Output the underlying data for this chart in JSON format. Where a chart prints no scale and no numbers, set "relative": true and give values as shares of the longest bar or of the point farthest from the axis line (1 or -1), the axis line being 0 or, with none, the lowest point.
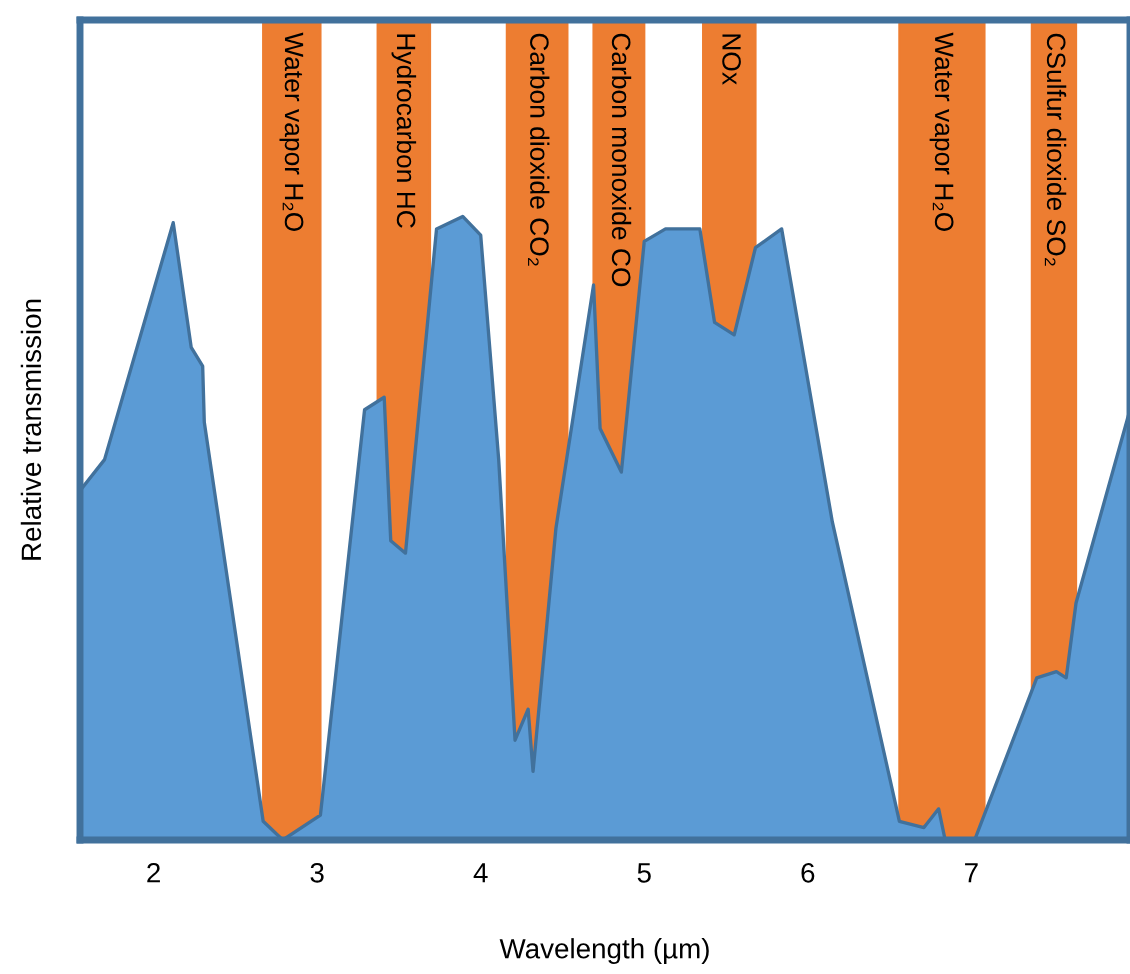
{
  "chart_data": {
    "type": "area",
    "relative": true,
    "xlabel": "Wavelength (µm)",
    "ylabel": "Relative transmission",
    "xlim": [
      1.55,
      7.97
    ],
    "xticks": [
      2,
      3,
      4,
      5,
      6,
      7
    ],
    "grid": false,
    "legend": false,
    "series": [
      {
        "color": "#5b9bd5",
        "x": [
          1.55,
          1.7,
          2.12,
          2.23,
          2.3,
          2.31,
          2.67,
          2.79,
          3.02,
          3.29,
          3.41,
          3.45,
          3.54,
          3.73,
          3.89,
          4.0,
          4.11,
          4.21,
          4.29,
          4.32,
          4.46,
          4.69,
          4.73,
          4.86,
          5.0,
          5.13,
          5.34,
          5.43,
          5.55,
          5.68,
          5.84,
          6.15,
          6.56,
          6.71,
          6.8,
          6.84,
          7.02,
          7.4,
          7.52,
          7.58,
          7.64,
          7.97
        ],
        "values": [
          0.56,
          0.61,
          0.99,
          0.79,
          0.76,
          0.67,
          0.03,
          0,
          0.04,
          0.69,
          0.71,
          0.48,
          0.46,
          0.98,
          1.0,
          0.97,
          0.61,
          0.16,
          0.21,
          0.11,
          0.5,
          0.89,
          0.66,
          0.59,
          0.96,
          0.98,
          0.98,
          0.83,
          0.81,
          0.95,
          0.98,
          0.51,
          0.03,
          0.02,
          0.05,
          0,
          0,
          0.26,
          0.27,
          0.26,
          0.38,
          0.69
        ]
      }
    ],
    "bands": [
      {
        "axis": "x",
        "from": 2.67,
        "to": 3.02,
        "label": "Water vapor H₂O",
        "color": "#ed7d31"
      },
      {
        "axis": "x",
        "from": 3.37,
        "to": 3.69,
        "label": "Hydrocarbon HC",
        "color": "#ed7d31"
      },
      {
        "axis": "x",
        "from": 4.16,
        "to": 4.53,
        "label": "Carbon dioxide CO₂",
        "color": "#ed7d31"
      },
      {
        "axis": "x",
        "from": 4.69,
        "to": 5.0,
        "label": "Carbon monoxide CO",
        "color": "#ed7d31"
      },
      {
        "axis": "x",
        "from": 5.36,
        "to": 5.68,
        "label": "NOx",
        "color": "#ed7d31"
      },
      {
        "axis": "x",
        "from": 6.56,
        "to": 7.08,
        "label": "Water vapor H₂O",
        "color": "#ed7d31"
      },
      {
        "axis": "x",
        "from": 7.37,
        "to": 7.64,
        "label": "CSulfur dioxide SO₂",
        "color": "#ed7d31"
      }
    ]
  }
}
